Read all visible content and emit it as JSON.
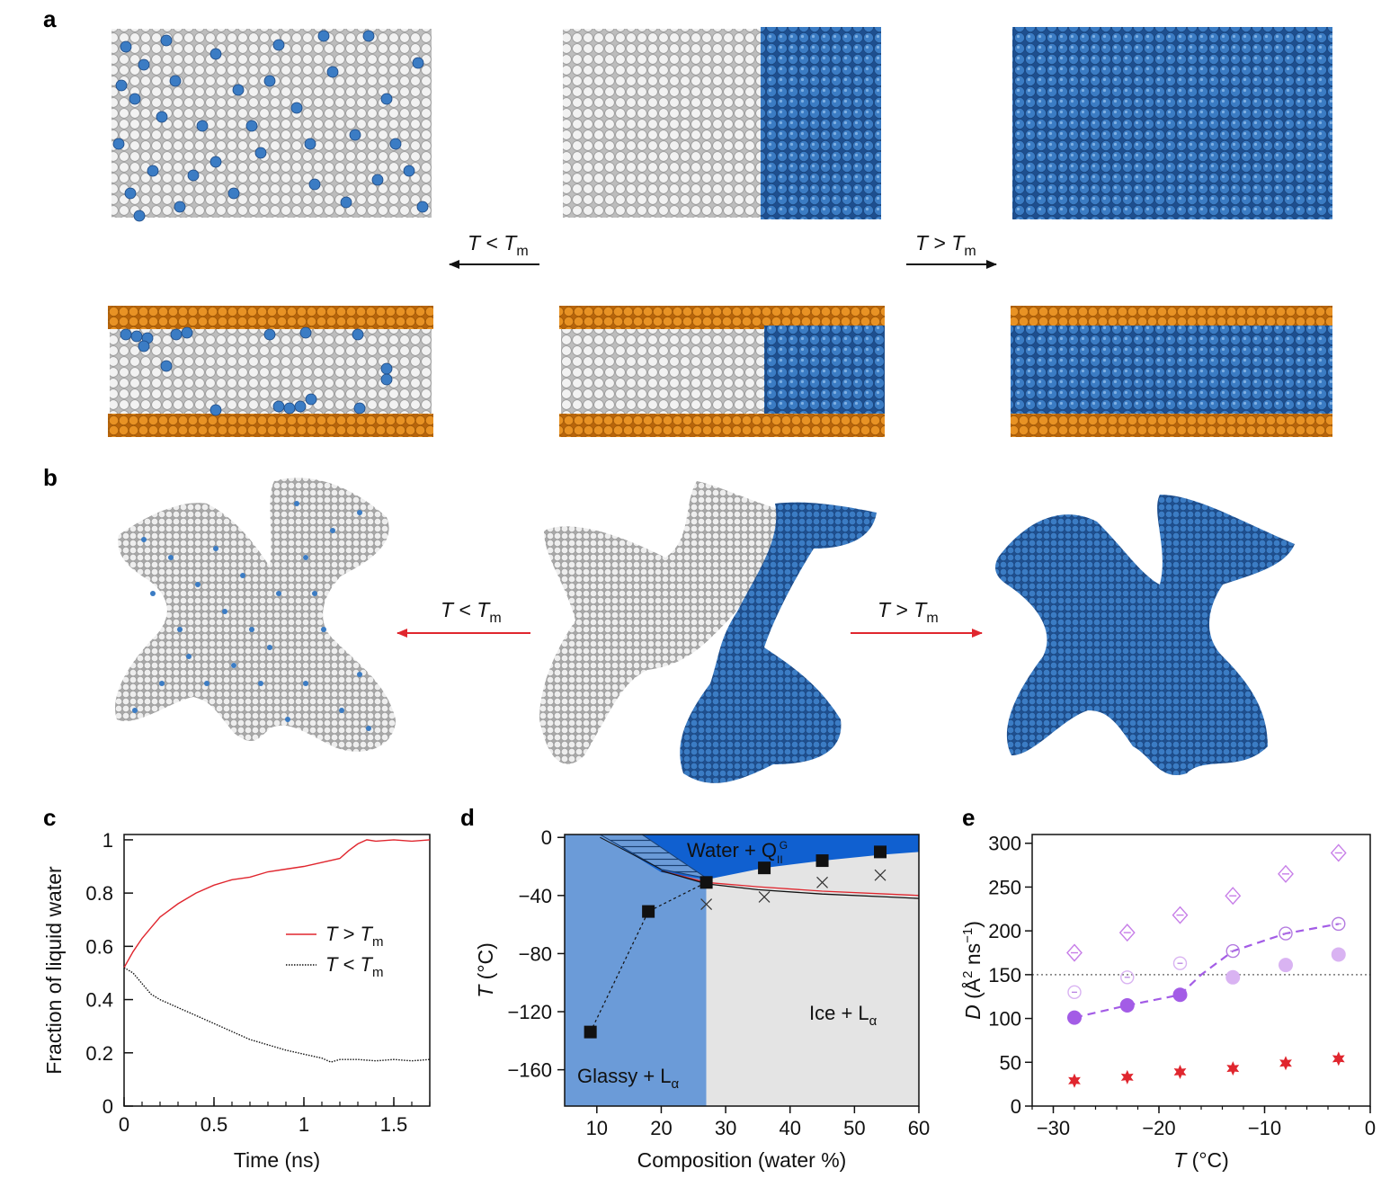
{
  "panels": {
    "a": {
      "letter": "a",
      "arrow_left": {
        "T": "T",
        "rel": " < ",
        "Tm_T": "T",
        "Tm_sub": "m"
      },
      "arrow_right": {
        "T": "T",
        "rel": " > ",
        "Tm_T": "T",
        "Tm_sub": "m"
      }
    },
    "b": {
      "letter": "b",
      "arrow_left": {
        "T": "T",
        "rel": " < ",
        "Tm_T": "T",
        "Tm_sub": "m"
      },
      "arrow_right": {
        "T": "T",
        "rel": " > ",
        "Tm_T": "T",
        "Tm_sub": "m"
      }
    },
    "c": {
      "letter": "c"
    },
    "d": {
      "letter": "d"
    },
    "e": {
      "letter": "e"
    }
  },
  "colors": {
    "water_blue": "#2f6fb6",
    "ice_white": "#e6e6e6",
    "lipid_orange": "#e08a1e",
    "red_line": "#e0262e",
    "purple": "#a35ce6",
    "light_purple": "#d9b3f2",
    "glassy_region": "#6b9bd8",
    "water_region": "#1060d0",
    "ice_region": "#e4e4e4"
  },
  "chart_data": [
    {
      "id": "c",
      "type": "line",
      "title": "",
      "xlabel": "Time (ns)",
      "ylabel": "Fraction of liquid water",
      "xlim": [
        0,
        1.7
      ],
      "ylim": [
        0,
        1.02
      ],
      "xticks": [
        "0",
        "0.5",
        "1",
        "1.5"
      ],
      "xtick_values": [
        0,
        0.5,
        1,
        1.5
      ],
      "yticks": [
        "0",
        "0.2",
        "0.4",
        "0.6",
        "0.8",
        "1"
      ],
      "ytick_values": [
        0,
        0.2,
        0.4,
        0.6,
        0.8,
        1.0
      ],
      "legend": {
        "placement": "center-right",
        "entries": [
          {
            "T": "T",
            "rel": " > ",
            "Tm_T": "T",
            "Tm_sub": "m",
            "style": "solid red"
          },
          {
            "T": "T",
            "rel": " < ",
            "Tm_T": "T",
            "Tm_sub": "m",
            "style": "dotted black"
          }
        ]
      },
      "series": [
        {
          "name": "T > Tm",
          "x": [
            0,
            0.05,
            0.1,
            0.15,
            0.2,
            0.3,
            0.4,
            0.5,
            0.6,
            0.7,
            0.8,
            0.9,
            1.0,
            1.1,
            1.2,
            1.25,
            1.3,
            1.35,
            1.4,
            1.5,
            1.6,
            1.7
          ],
          "y": [
            0.52,
            0.58,
            0.63,
            0.67,
            0.71,
            0.76,
            0.8,
            0.83,
            0.85,
            0.86,
            0.88,
            0.89,
            0.9,
            0.915,
            0.93,
            0.96,
            0.985,
            1.0,
            0.995,
            1.0,
            0.995,
            1.0
          ]
        },
        {
          "name": "T < Tm",
          "x": [
            0,
            0.05,
            0.1,
            0.15,
            0.2,
            0.3,
            0.4,
            0.5,
            0.6,
            0.7,
            0.8,
            0.9,
            1.0,
            1.1,
            1.15,
            1.2,
            1.3,
            1.4,
            1.5,
            1.6,
            1.7
          ],
          "y": [
            0.52,
            0.5,
            0.46,
            0.42,
            0.4,
            0.37,
            0.34,
            0.31,
            0.28,
            0.25,
            0.23,
            0.21,
            0.195,
            0.18,
            0.165,
            0.175,
            0.175,
            0.17,
            0.175,
            0.17,
            0.175
          ]
        }
      ]
    },
    {
      "id": "d",
      "type": "scatter",
      "title": "",
      "xlabel": "Composition (water %)",
      "ylabel_T": "T",
      "ylabel_unit": " (°C)",
      "xlim": [
        5,
        60
      ],
      "ylim": [
        -185,
        2
      ],
      "xticks": [
        "10",
        "20",
        "30",
        "40",
        "50",
        "60"
      ],
      "xtick_values": [
        10,
        20,
        30,
        40,
        50,
        60
      ],
      "yticks": [
        "0",
        "−40",
        "−80",
        "−120",
        "−160"
      ],
      "ytick_values": [
        0,
        -40,
        -80,
        -120,
        -160
      ],
      "regions": {
        "glassy": {
          "label": "Glassy + L",
          "sub": "α"
        },
        "ice": {
          "label": "Ice + L",
          "sub": "α"
        },
        "water": {
          "label": "Water + Q",
          "sub": "II",
          "sup": "G"
        }
      },
      "squares": {
        "x": [
          9,
          18,
          27,
          36,
          45,
          54
        ],
        "y": [
          -134,
          -51,
          -31,
          -21,
          -16,
          -10
        ]
      },
      "crosses": {
        "x": [
          27,
          36,
          45,
          54
        ],
        "y": [
          -46,
          -41,
          -31,
          -26
        ]
      },
      "water_boundary": {
        "x": [
          20,
          27,
          36,
          45,
          54,
          60
        ],
        "y": [
          -24,
          -29,
          -21,
          -16,
          -12,
          -10
        ]
      },
      "glass_boundary": {
        "x": [
          10.5,
          27
        ],
        "y": [
          0,
          -30
        ]
      },
      "red_line": {
        "x": [
          20,
          27,
          35,
          45,
          55,
          60
        ],
        "y": [
          -23,
          -31,
          -34,
          -37,
          -39,
          -40
        ]
      },
      "black_line": {
        "x": [
          20,
          27,
          35,
          45,
          55,
          60
        ],
        "y": [
          -23,
          -32,
          -36,
          -39,
          -41,
          -42
        ]
      }
    },
    {
      "id": "e",
      "type": "scatter",
      "title": "",
      "xlabel_T": "T",
      "xlabel_unit": " (°C)",
      "ylabel_D": "D",
      "ylabel_unit": " (Å",
      "ylabel_sup": "2",
      "ylabel_rest": " ns",
      "ylabel_sup2": "−1",
      "ylabel_close": ")",
      "xlim": [
        -32,
        0
      ],
      "ylim": [
        0,
        310
      ],
      "xticks": [
        "−30",
        "−20",
        "−10",
        "0"
      ],
      "xtick_values": [
        -30,
        -20,
        -10,
        0
      ],
      "yticks": [
        "0",
        "50",
        "100",
        "150",
        "200",
        "250",
        "300"
      ],
      "ytick_values": [
        0,
        50,
        100,
        150,
        200,
        250,
        300
      ],
      "reference_line": 150,
      "series": [
        {
          "name": "diamonds",
          "x": [
            -28,
            -23,
            -18,
            -13,
            -8,
            -3
          ],
          "y": [
            175,
            198,
            218,
            240,
            265,
            289
          ]
        },
        {
          "name": "open circles",
          "x": [
            -28,
            -23,
            -18,
            -13,
            -8,
            -3
          ],
          "y": [
            130,
            147,
            163,
            177,
            197,
            208
          ]
        },
        {
          "name": "filled circles",
          "x": [
            -28,
            -23,
            -18
          ],
          "y": [
            101,
            115,
            127
          ]
        },
        {
          "name": "light filled circles",
          "x": [
            -13,
            -8,
            -3
          ],
          "y": [
            147,
            161,
            173
          ]
        },
        {
          "name": "red stars",
          "x": [
            -28,
            -23,
            -18,
            -13,
            -8,
            -3
          ],
          "y": [
            29,
            33,
            39,
            43,
            49,
            54
          ]
        }
      ],
      "dashed_fit": {
        "x": [
          -28,
          -23,
          -18,
          -16,
          -13,
          -8,
          -3
        ],
        "y": [
          101,
          115,
          127,
          150,
          177,
          197,
          208
        ]
      }
    }
  ]
}
